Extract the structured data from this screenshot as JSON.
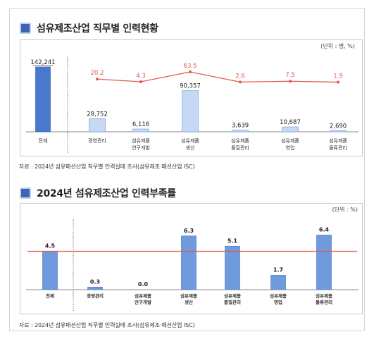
{
  "section1": {
    "title": "섬유제조산업 직무별 인력현황",
    "unit": "(단위 : 명, %)",
    "source": "자료 : 2024년 섬유패션산업 직무별 인력실태 조사(섬유제조·패션산업 ISC)"
  },
  "section2": {
    "title": "2024년 섬유제조산업 인력부족률",
    "unit": "(단위 : %)",
    "source": "자료 : 2024년 섬유패션산업 직무별 인력실태 조사(섬유제조·패션산업 ISC)"
  },
  "colors": {
    "total_bar": "#4a78cf",
    "job_bar": "#c6d9f4",
    "job_bar_border": "#7fa2d6",
    "chart2_bar": "#6f9bde",
    "line": "#e05a4e"
  },
  "chart_data": [
    {
      "type": "bar",
      "categories": [
        [
          "전체"
        ],
        [
          "경영관리"
        ],
        [
          "섬유제품",
          "연구개발"
        ],
        [
          "섬유제품",
          "생산"
        ],
        [
          "섬유제품",
          "품질관리"
        ],
        [
          "섬유제품",
          "영업"
        ],
        [
          "섬유제품",
          "물류관리"
        ]
      ],
      "values": [
        142241,
        28752,
        6116,
        90357,
        3639,
        10687,
        2690
      ],
      "value_labels": [
        "142,241",
        "28,752",
        "6,116",
        "90,357",
        "3,639",
        "10,687",
        "2,690"
      ],
      "line_series": {
        "values": [
          null,
          20.2,
          4.3,
          63.5,
          2.6,
          7.5,
          1.9
        ],
        "labels": [
          "",
          "20.2",
          "4.3",
          "63.5",
          "2.6",
          "7.5",
          "1.9"
        ]
      },
      "legend": false
    },
    {
      "type": "bar",
      "categories": [
        [
          "전체"
        ],
        [
          "경영관리"
        ],
        [
          "섬유제품",
          "연구개발"
        ],
        [
          "섬유제품",
          "생산"
        ],
        [
          "섬유제품",
          "품질관리"
        ],
        [
          "섬유제품",
          "영업"
        ],
        [
          "섬유제품",
          "물류관리"
        ]
      ],
      "values": [
        4.5,
        0.3,
        0.0,
        6.3,
        5.1,
        1.7,
        6.4
      ],
      "value_labels": [
        "4.5",
        "0.3",
        "0.0",
        "6.3",
        "5.1",
        "1.7",
        "6.4"
      ],
      "reference_line": 4.5,
      "legend": false
    }
  ]
}
